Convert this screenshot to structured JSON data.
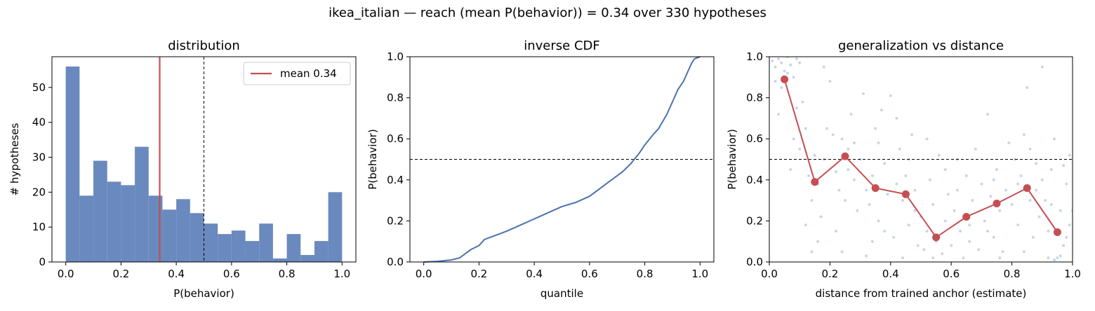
{
  "figure": {
    "suptitle": "ikea_italian  —  reach (mean P(behavior)) = 0.34  over 330 hypotheses"
  },
  "colors": {
    "hist_bar": "#6a89be",
    "mean_line": "#c44e52",
    "cdf_line": "#4c72b0",
    "scatter_point": "#b0c4de",
    "binned_line": "#c44e52",
    "threshold": "#000000"
  },
  "chart_data": [
    {
      "type": "bar",
      "title": "distribution",
      "xlabel": "P(behavior)",
      "ylabel": "# hypotheses",
      "xlim": [
        -0.05,
        1.05
      ],
      "ylim": [
        0,
        58.8
      ],
      "xticks": [
        "0.0",
        "0.2",
        "0.4",
        "0.6",
        "0.8",
        "1.0"
      ],
      "yticks": [
        "0",
        "10",
        "20",
        "30",
        "40",
        "50"
      ],
      "bin_edges": [
        0.0,
        0.05,
        0.1,
        0.15,
        0.2,
        0.25,
        0.3,
        0.35,
        0.4,
        0.45,
        0.5,
        0.55,
        0.6,
        0.65,
        0.7,
        0.75,
        0.8,
        0.85,
        0.9,
        0.95,
        1.0
      ],
      "values": [
        56,
        19,
        29,
        23,
        22,
        33,
        19,
        15,
        18,
        14,
        11,
        8,
        9,
        6,
        11,
        1,
        8,
        2,
        6,
        20
      ],
      "mean": 0.34,
      "threshold": 0.5,
      "legend": {
        "label": "mean 0.34",
        "placement": "upper right"
      }
    },
    {
      "type": "line",
      "title": "inverse CDF",
      "xlabel": "quantile",
      "ylabel": "P(behavior)",
      "xlim": [
        -0.05,
        1.05
      ],
      "ylim": [
        0,
        1
      ],
      "xticks": [
        "0.0",
        "0.2",
        "0.4",
        "0.6",
        "0.8",
        "1.0"
      ],
      "yticks": [
        "0.0",
        "0.2",
        "0.4",
        "0.6",
        "0.8",
        "1.0"
      ],
      "threshold": 0.5,
      "x": [
        0.0,
        0.05,
        0.1,
        0.13,
        0.15,
        0.17,
        0.2,
        0.22,
        0.25,
        0.3,
        0.35,
        0.4,
        0.45,
        0.5,
        0.55,
        0.6,
        0.65,
        0.7,
        0.72,
        0.75,
        0.78,
        0.8,
        0.83,
        0.85,
        0.88,
        0.9,
        0.92,
        0.94,
        0.95,
        0.97,
        0.98,
        1.0
      ],
      "y": [
        0.0,
        0.003,
        0.01,
        0.02,
        0.04,
        0.06,
        0.08,
        0.11,
        0.125,
        0.15,
        0.18,
        0.21,
        0.24,
        0.27,
        0.29,
        0.32,
        0.37,
        0.42,
        0.44,
        0.48,
        0.53,
        0.57,
        0.62,
        0.65,
        0.72,
        0.78,
        0.84,
        0.88,
        0.91,
        0.97,
        0.99,
        1.0
      ]
    },
    {
      "type": "scatter",
      "title": "generalization vs distance",
      "xlabel": "distance from trained anchor (estimate)",
      "ylabel": "P(behavior)",
      "xlim": [
        0,
        1
      ],
      "ylim": [
        0,
        1
      ],
      "xticks": [
        "0.0",
        "0.2",
        "0.4",
        "0.6",
        "0.8",
        "1.0"
      ],
      "yticks": [
        "0.0",
        "0.2",
        "0.4",
        "0.6",
        "0.8",
        "1.0"
      ],
      "threshold": 0.5,
      "binned": {
        "x": [
          0.05,
          0.15,
          0.25,
          0.35,
          0.45,
          0.55,
          0.65,
          0.75,
          0.85,
          0.95
        ],
        "y": [
          0.89,
          0.39,
          0.515,
          0.36,
          0.33,
          0.12,
          0.22,
          0.285,
          0.36,
          0.145
        ]
      },
      "points": [
        [
          0.01,
          0.98
        ],
        [
          0.02,
          0.95
        ],
        [
          0.03,
          0.99
        ],
        [
          0.04,
          0.97
        ],
        [
          0.05,
          0.93
        ],
        [
          0.06,
          1.0
        ],
        [
          0.07,
          0.96
        ],
        [
          0.08,
          0.9
        ],
        [
          0.09,
          0.99
        ],
        [
          0.1,
          0.97
        ],
        [
          0.02,
          0.88
        ],
        [
          0.04,
          0.85
        ],
        [
          0.06,
          0.92
        ],
        [
          0.08,
          0.6
        ],
        [
          0.09,
          0.75
        ],
        [
          0.11,
          0.78
        ],
        [
          0.12,
          0.65
        ],
        [
          0.03,
          0.72
        ],
        [
          0.07,
          0.45
        ],
        [
          0.1,
          0.55
        ],
        [
          0.13,
          0.42
        ],
        [
          0.14,
          0.3
        ],
        [
          0.15,
          0.52
        ],
        [
          0.16,
          0.38
        ],
        [
          0.17,
          0.22
        ],
        [
          0.18,
          0.5
        ],
        [
          0.19,
          0.65
        ],
        [
          0.12,
          0.18
        ],
        [
          0.14,
          0.05
        ],
        [
          0.16,
          0.1
        ],
        [
          0.18,
          0.95
        ],
        [
          0.2,
          0.88
        ],
        [
          0.21,
          0.62
        ],
        [
          0.22,
          0.44
        ],
        [
          0.23,
          0.35
        ],
        [
          0.24,
          0.6
        ],
        [
          0.25,
          0.3
        ],
        [
          0.26,
          0.55
        ],
        [
          0.27,
          0.72
        ],
        [
          0.28,
          0.4
        ],
        [
          0.29,
          0.25
        ],
        [
          0.22,
          0.15
        ],
        [
          0.24,
          0.05
        ],
        [
          0.26,
          0.45
        ],
        [
          0.28,
          0.58
        ],
        [
          0.3,
          0.5
        ],
        [
          0.31,
          0.82
        ],
        [
          0.32,
          0.35
        ],
        [
          0.33,
          0.28
        ],
        [
          0.34,
          0.42
        ],
        [
          0.35,
          0.65
        ],
        [
          0.36,
          0.2
        ],
        [
          0.37,
          0.74
        ],
        [
          0.38,
          0.15
        ],
        [
          0.39,
          0.33
        ],
        [
          0.32,
          0.03
        ],
        [
          0.34,
          0.1
        ],
        [
          0.36,
          0.58
        ],
        [
          0.38,
          0.48
        ],
        [
          0.4,
          0.81
        ],
        [
          0.41,
          0.12
        ],
        [
          0.42,
          0.38
        ],
        [
          0.43,
          0.55
        ],
        [
          0.44,
          0.3
        ],
        [
          0.45,
          0.42
        ],
        [
          0.46,
          0.18
        ],
        [
          0.47,
          0.62
        ],
        [
          0.48,
          0.25
        ],
        [
          0.49,
          0.08
        ],
        [
          0.42,
          0.7
        ],
        [
          0.44,
          0.02
        ],
        [
          0.46,
          0.5
        ],
        [
          0.48,
          0.35
        ],
        [
          0.5,
          0.22
        ],
        [
          0.51,
          0.06
        ],
        [
          0.52,
          0.15
        ],
        [
          0.53,
          0.4
        ],
        [
          0.54,
          0.28
        ],
        [
          0.55,
          0.1
        ],
        [
          0.56,
          0.52
        ],
        [
          0.57,
          0.04
        ],
        [
          0.58,
          0.2
        ],
        [
          0.59,
          0.33
        ],
        [
          0.52,
          0.6
        ],
        [
          0.54,
          0.02
        ],
        [
          0.56,
          0.12
        ],
        [
          0.58,
          0.45
        ],
        [
          0.6,
          0.08
        ],
        [
          0.61,
          0.25
        ],
        [
          0.62,
          0.35
        ],
        [
          0.63,
          0.15
        ],
        [
          0.64,
          0.02
        ],
        [
          0.65,
          0.42
        ],
        [
          0.66,
          0.18
        ],
        [
          0.67,
          0.3
        ],
        [
          0.68,
          0.55
        ],
        [
          0.69,
          0.06
        ],
        [
          0.62,
          0.5
        ],
        [
          0.64,
          0.22
        ],
        [
          0.66,
          0.1
        ],
        [
          0.7,
          0.38
        ],
        [
          0.71,
          0.2
        ],
        [
          0.72,
          0.72
        ],
        [
          0.73,
          0.32
        ],
        [
          0.74,
          0.12
        ],
        [
          0.75,
          0.45
        ],
        [
          0.76,
          0.25
        ],
        [
          0.77,
          0.05
        ],
        [
          0.78,
          0.35
        ],
        [
          0.79,
          0.58
        ],
        [
          0.72,
          0.15
        ],
        [
          0.74,
          0.4
        ],
        [
          0.76,
          0.02
        ],
        [
          0.8,
          0.28
        ],
        [
          0.81,
          0.5
        ],
        [
          0.82,
          0.18
        ],
        [
          0.83,
          0.42
        ],
        [
          0.84,
          0.62
        ],
        [
          0.85,
          0.85
        ],
        [
          0.86,
          0.3
        ],
        [
          0.87,
          0.12
        ],
        [
          0.88,
          0.48
        ],
        [
          0.89,
          0.22
        ],
        [
          0.82,
          0.38
        ],
        [
          0.84,
          0.05
        ],
        [
          0.86,
          0.55
        ],
        [
          0.88,
          0.35
        ],
        [
          0.9,
          0.95
        ],
        [
          0.91,
          0.3
        ],
        [
          0.92,
          0.15
        ],
        [
          0.93,
          0.45
        ],
        [
          0.94,
          0.6
        ],
        [
          0.95,
          0.02
        ],
        [
          0.96,
          0.25
        ],
        [
          0.97,
          0.08
        ],
        [
          0.98,
          0.38
        ],
        [
          0.99,
          0.52
        ],
        [
          0.92,
          0.02
        ],
        [
          0.94,
          0.01
        ],
        [
          0.96,
          0.03
        ],
        [
          0.98,
          0.12
        ],
        [
          1.0,
          0.25
        ],
        [
          0.9,
          0.4
        ],
        [
          0.93,
          0.28
        ],
        [
          0.97,
          0.47
        ],
        [
          0.99,
          0.18
        ]
      ]
    }
  ]
}
